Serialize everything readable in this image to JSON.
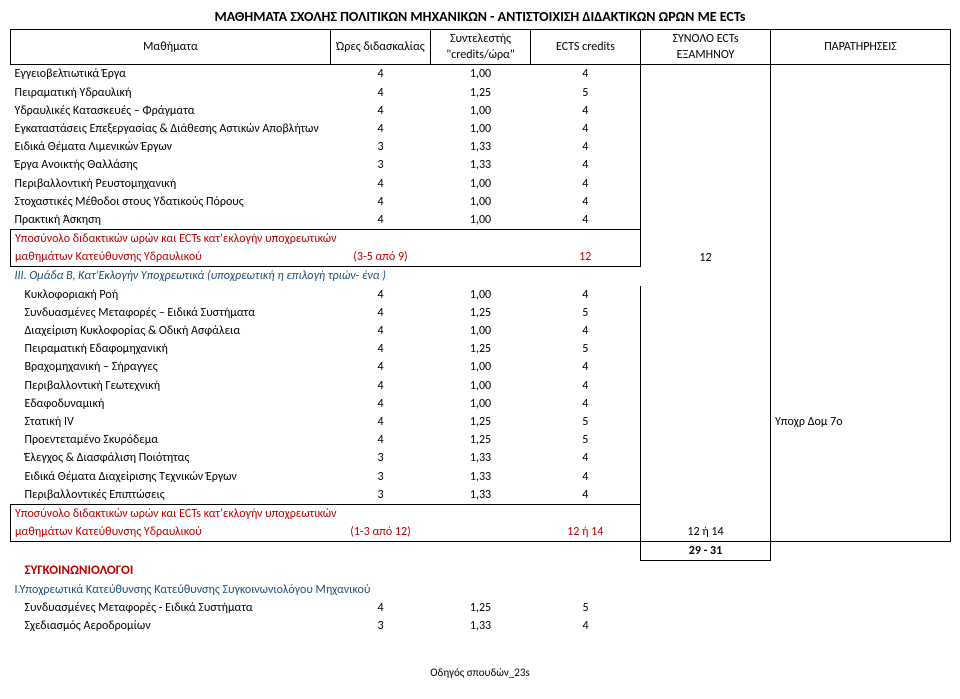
{
  "title": "ΜΑΘΗΜΑΤΑ ΣΧΟΛΗΣ ΠΟΛΙΤΙΚΩΝ ΜΗΧΑΝΙΚΩΝ - ΑΝΤΙΣΤΟΙΧΙΣΗ ΔΙΔΑΚΤΙΚΩΝ ΩΡΩΝ ΜΕ ECTs",
  "headers": {
    "name": "Μαθήματα",
    "hours": "Ώρες διδασκαλίας",
    "coef": "Συντελεστής \"credits/ώρα\"",
    "ects": "ECTS credits",
    "semtot": "ΣΥΝΟΛΟ ECTs ΕΞΑΜΗΝΟΥ",
    "notes": "ΠΑΡΑΤΗΡΗΣΕΙΣ"
  },
  "rows1": [
    {
      "name": "Εγγειοβελτιωτικά Έργα",
      "h": "4",
      "c": "1,00",
      "e": "4"
    },
    {
      "name": "Πειραματική Υδραυλική",
      "h": "4",
      "c": "1,25",
      "e": "5"
    },
    {
      "name": "Υδραυλικές Κατασκευές – Φράγματα",
      "h": "4",
      "c": "1,00",
      "e": "4"
    },
    {
      "name": "Εγκαταστάσεις Επεξεργασίας & Διάθεσης Αστικών Αποβλήτων",
      "h": "4",
      "c": "1,00",
      "e": "4"
    },
    {
      "name": "Ειδικά Θέματα Λιμενικών Έργων",
      "h": "3",
      "c": "1,33",
      "e": "4"
    },
    {
      "name": "Έργα Ανοικτής Θαλλάσης",
      "h": "3",
      "c": "1,33",
      "e": "4"
    },
    {
      "name": "Περιβαλλοντική Ρευστομηχανική",
      "h": "4",
      "c": "1,00",
      "e": "4"
    },
    {
      "name": "Στοχαστικές Μέθοδοι στους Υδατικούς Πόρους",
      "h": "4",
      "c": "1,00",
      "e": "4"
    },
    {
      "name": "Πρακτική Άσκηση",
      "h": "4",
      "c": "1,00",
      "e": "4"
    }
  ],
  "sub1": {
    "line1": "Υποσύνολο διδακτικών ωρών και ECTs κατ'εκλογήν υποχρεωτικών",
    "line2": "μαθημάτων Κατεύθυνσης Υδραυλικού",
    "range": "(3-5 από 9)",
    "sum": "12",
    "ectssem": "12"
  },
  "group2_title": "III. Ομάδα B, Κατ'Εκλογήν Υποχρεωτικά (υποχρεωτική η επιλογή τριών- ένα )",
  "rows2": [
    {
      "name": "Κυκλοφοριακή Ροή",
      "h": "4",
      "c": "1,00",
      "e": "4",
      "note": ""
    },
    {
      "name": "Συνδυασμένες Μεταφορές – Ειδικά Συστήματα",
      "h": "4",
      "c": "1,25",
      "e": "5",
      "note": ""
    },
    {
      "name": "Διαχείριση Κυκλοφορίας & Οδική Ασφάλεια",
      "h": "4",
      "c": "1,00",
      "e": "4",
      "note": ""
    },
    {
      "name": "Πειραματική Εδαφομηχανική",
      "h": "4",
      "c": "1,25",
      "e": "5",
      "note": ""
    },
    {
      "name": "Βραχομηχανική – Σήραγγες",
      "h": "4",
      "c": "1,00",
      "e": "4",
      "note": ""
    },
    {
      "name": "Περιβαλλοντική Γεωτεχνική",
      "h": "4",
      "c": "1,00",
      "e": "4",
      "note": ""
    },
    {
      "name": "Εδαφοδυναμική",
      "h": "4",
      "c": "1,00",
      "e": "4",
      "note": ""
    },
    {
      "name": "Στατική IV",
      "h": "4",
      "c": "1,25",
      "e": "5",
      "note": "Υποχρ Δομ 7ο"
    },
    {
      "name": "Προεντεταμένο Σκυρόδεμα",
      "h": "4",
      "c": "1,25",
      "e": "5",
      "note": ""
    },
    {
      "name": "Έλεγχος & Διασφάλιση Ποιότητας",
      "h": "3",
      "c": "1,33",
      "e": "4",
      "note": ""
    },
    {
      "name": "Ειδικά Θέματα Διαχείρισης Τεχνικών Έργων",
      "h": "3",
      "c": "1,33",
      "e": "4",
      "note": ""
    },
    {
      "name": "Περιβαλλοντικές Επιπτώσεις",
      "h": "3",
      "c": "1,33",
      "e": "4",
      "note": ""
    }
  ],
  "sub2": {
    "line1": "Υποσύνολο διδακτικών ωρών και ECTs κατ'εκλογήν υποχρεωτικών",
    "line2": "μαθημάτων Κατεύθυνσης Υδραυλικού",
    "range": "(1-3 από 12)",
    "sum": "12   ή  14",
    "ectssem": "12  ή     14"
  },
  "grand_total": "29    -    31",
  "section2_title": "ΣΥΓΚΟΙΝΩΝΙΟΛΟΓΟΙ",
  "section2_line": "Ι.Υποχρεωτικά Κατεύθυνσης Κατεύθυνσης Συγκοινωνιολόγου Μηχανικού",
  "rows3": [
    {
      "name": "Συνδυασμένες Μεταφορές - Ειδικά Συστήματα",
      "h": "4",
      "c": "1,25",
      "e": "5"
    },
    {
      "name": "Σχεδιασμός Αεροδρομίων",
      "h": "3",
      "c": "1,33",
      "e": "4"
    }
  ],
  "footer": "Οδηγός σπουδών_23s"
}
